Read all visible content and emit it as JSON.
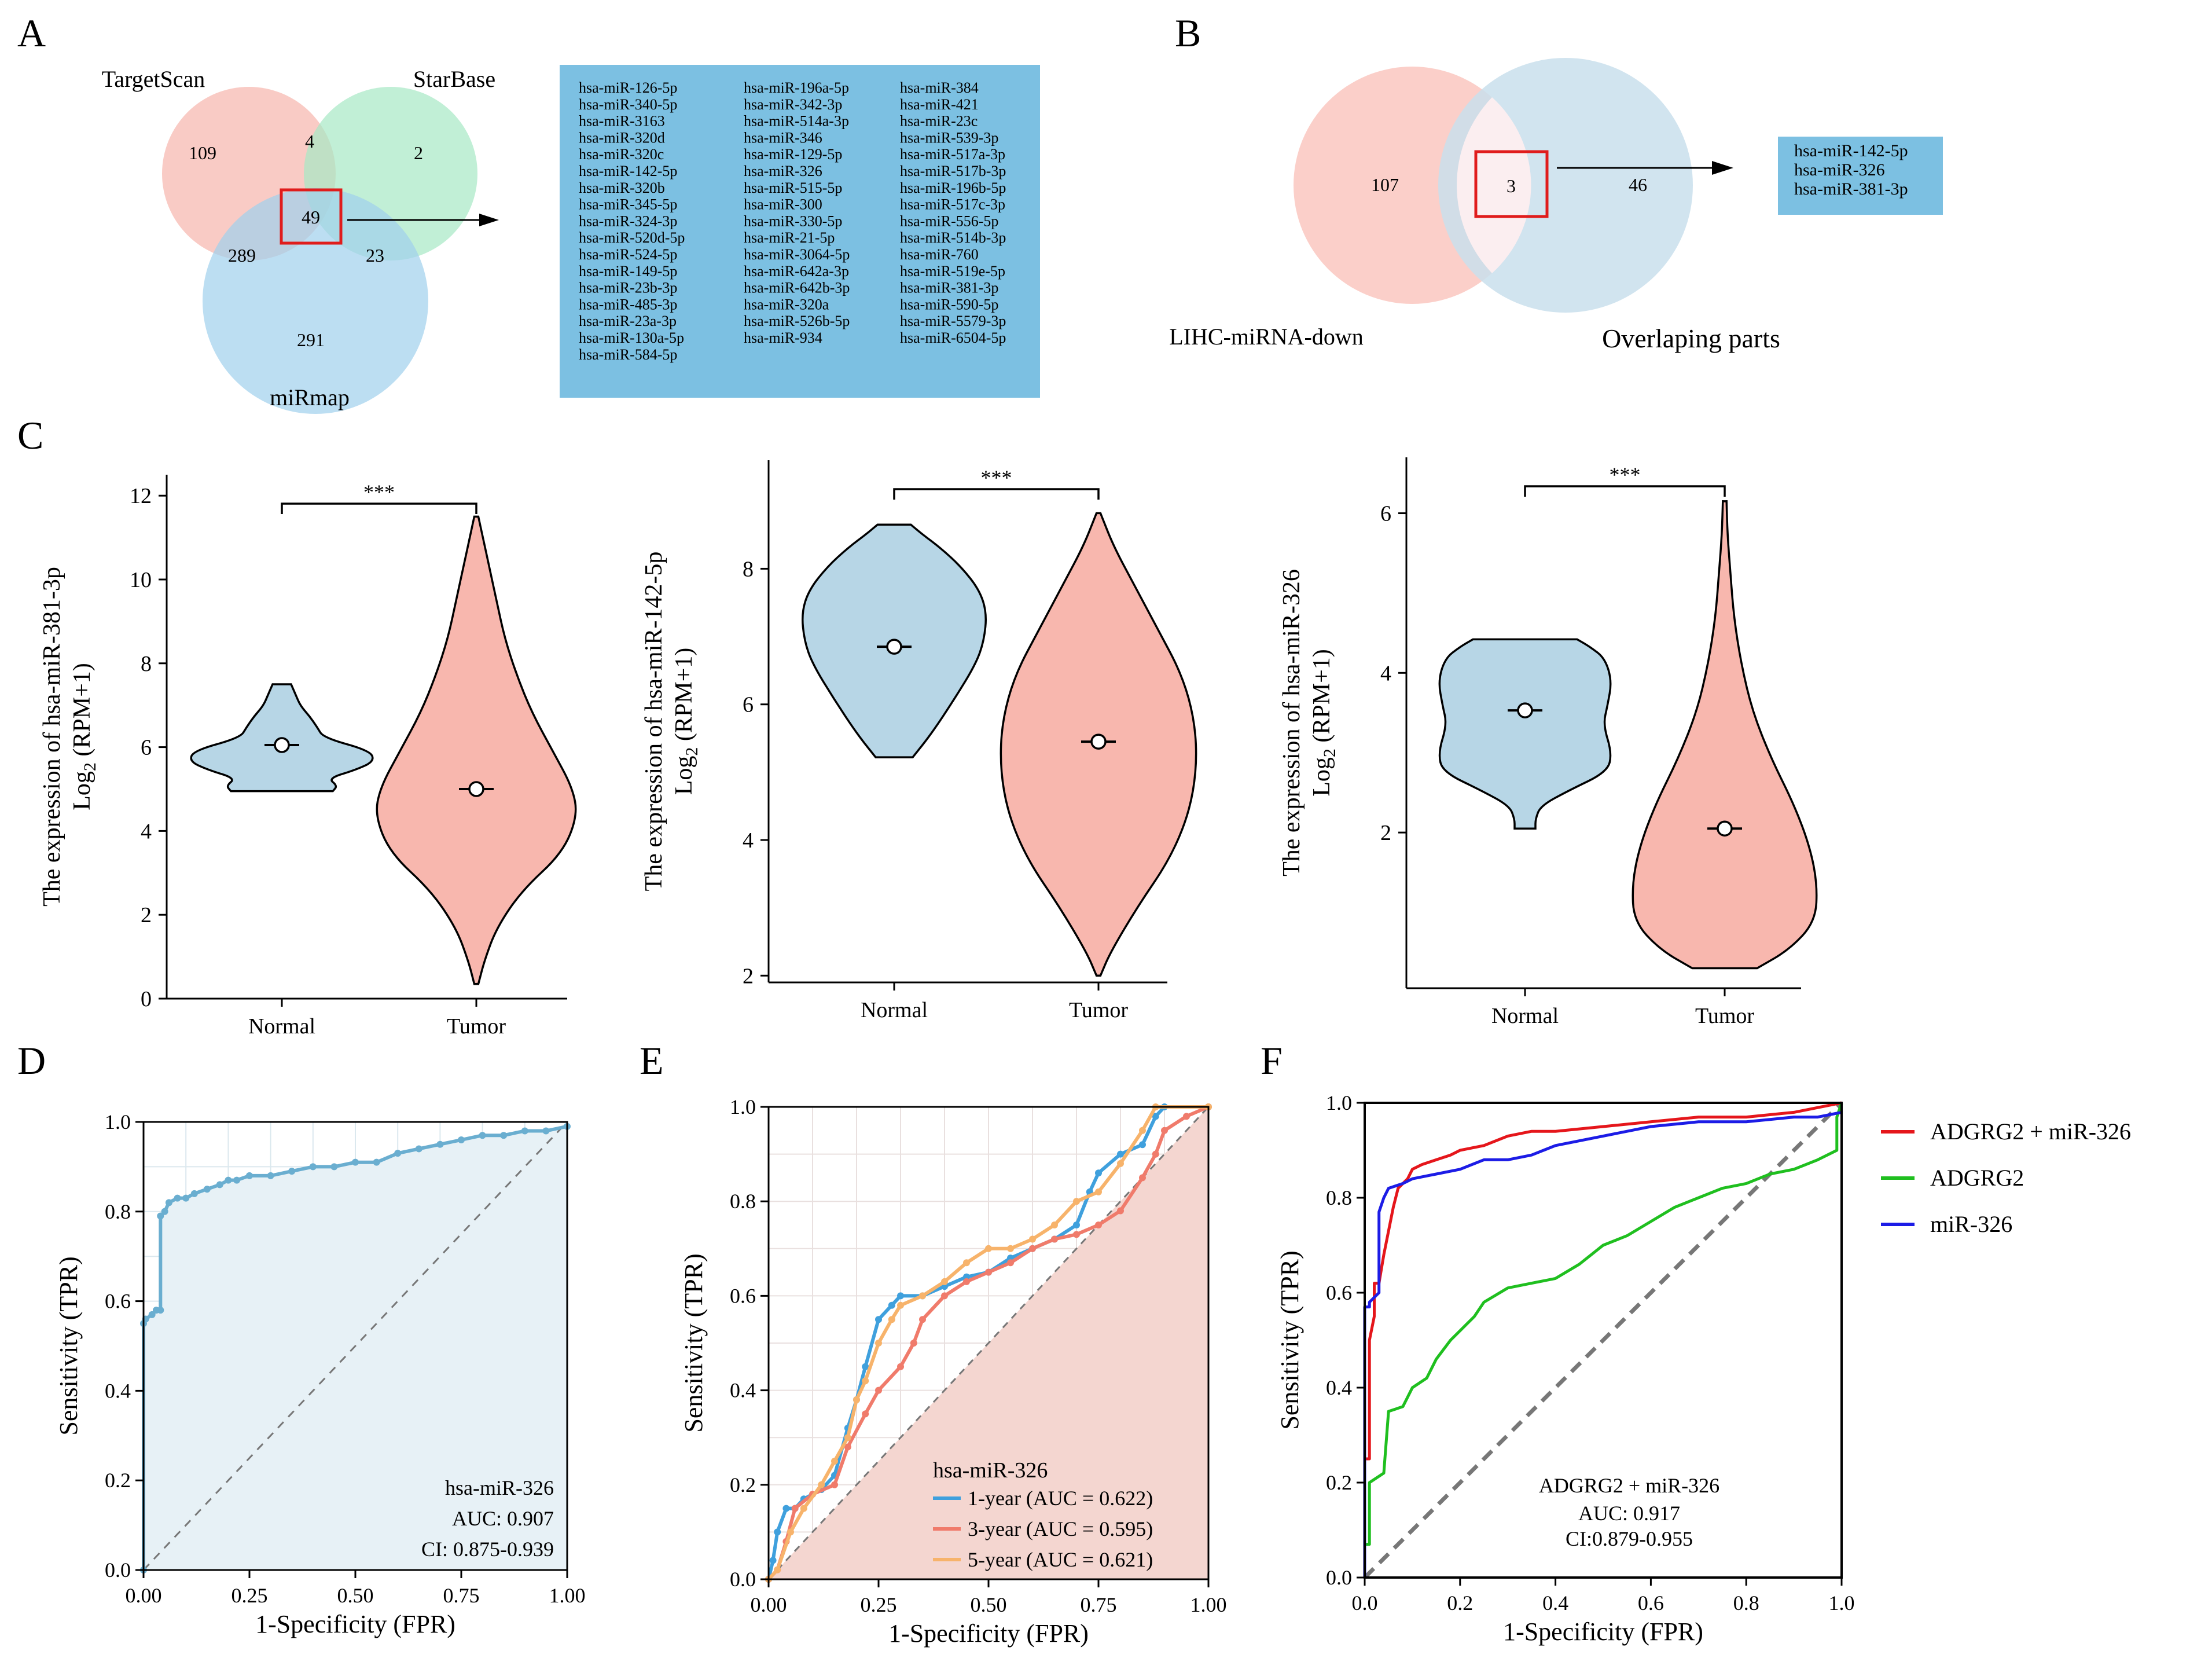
{
  "chart_data": [
    {
      "panel": "A",
      "type": "venn",
      "sets": [
        "TargetScan",
        "StarBase",
        "miRmap"
      ],
      "regions": {
        "TargetScan_only": 109,
        "StarBase_only": 2,
        "miRmap_only": 291,
        "TargetScan_StarBase": 4,
        "TargetScan_miRmap": 289,
        "StarBase_miRmap": 23,
        "all_three": 49
      },
      "intersection_list": [
        [
          "hsa-miR-126-5p",
          "hsa-miR-340-5p",
          "hsa-miR-3163",
          "hsa-miR-320d",
          "hsa-miR-320c",
          "hsa-miR-142-5p",
          "hsa-miR-320b",
          "hsa-miR-345-5p",
          "hsa-miR-324-3p",
          "hsa-miR-520d-5p",
          "hsa-miR-524-5p",
          "hsa-miR-149-5p",
          "hsa-miR-23b-3p",
          "hsa-miR-485-3p",
          "hsa-miR-23a-3p",
          "hsa-miR-130a-5p",
          "hsa-miR-584-5p"
        ],
        [
          "hsa-miR-196a-5p",
          "hsa-miR-342-3p",
          "hsa-miR-514a-3p",
          "hsa-miR-346",
          "hsa-miR-129-5p",
          "hsa-miR-326",
          "hsa-miR-515-5p",
          "hsa-miR-300",
          "hsa-miR-330-5p",
          "hsa-miR-21-5p",
          "hsa-miR-3064-5p",
          "hsa-miR-642a-3p",
          "hsa-miR-642b-3p",
          "hsa-miR-320a",
          "hsa-miR-526b-5p",
          "hsa-miR-934"
        ],
        [
          "hsa-miR-384",
          "hsa-miR-421",
          "hsa-miR-23c",
          "hsa-miR-539-3p",
          "hsa-miR-517a-3p",
          "hsa-miR-517b-3p",
          "hsa-miR-196b-5p",
          "hsa-miR-517c-3p",
          "hsa-miR-556-5p",
          "hsa-miR-514b-3p",
          "hsa-miR-760",
          "hsa-miR-519e-5p",
          "hsa-miR-381-3p",
          "hsa-miR-590-5p",
          "hsa-miR-5579-3p",
          "hsa-miR-6504-5p"
        ]
      ],
      "colors": {
        "TargetScan": "#f6b5ad",
        "StarBase": "#a6e8c5",
        "miRmap": "#9fd0ec",
        "list_box": "#7cc0e2"
      }
    },
    {
      "panel": "B",
      "type": "venn",
      "sets": [
        "LIHC-miRNA-down",
        "Overlaping parts"
      ],
      "regions": {
        "left_only": 107,
        "overlap": 3,
        "right_only": 46
      },
      "intersection_list": [
        "hsa-miR-142-5p",
        "hsa-miR-326",
        "hsa-miR-381-3p"
      ],
      "colors": {
        "left": "#fac7bf",
        "right": "#c9dfec",
        "list_box": "#7cc0e2"
      }
    },
    {
      "panel": "C",
      "type": "violin",
      "significance": "***",
      "categories": [
        "Normal",
        "Tumor"
      ],
      "plots": [
        {
          "ylabel_line1": "The expression  of hsa-miR-381-3p",
          "ylabel_base": "Log",
          "ylabel_sub": "2",
          "ylabel_tail": " (RPM+1)",
          "ylim": [
            0,
            12.5
          ],
          "yticks": [
            0,
            2,
            4,
            6,
            8,
            10,
            12
          ],
          "normal": {
            "min": 4.95,
            "max": 7.5,
            "mean": 6.05
          },
          "tumor": {
            "min": 0.35,
            "max": 11.5,
            "mean": 5.0
          }
        },
        {
          "ylabel_line1": "The expression  of hsa-miR-142-5p",
          "ylabel_base": "Log",
          "ylabel_sub": "2",
          "ylabel_tail": " (RPM+1)",
          "ylim": [
            1.9,
            9.6
          ],
          "yticks": [
            2,
            4,
            6,
            8
          ],
          "normal": {
            "min": 5.22,
            "max": 8.65,
            "mean": 6.85
          },
          "tumor": {
            "min": 2.0,
            "max": 8.82,
            "mean": 5.45
          }
        },
        {
          "ylabel_line1": "The expression  of hsa-miR-326",
          "ylabel_base": "Log",
          "ylabel_sub": "2",
          "ylabel_tail": " (RPM+1)",
          "ylim": [
            0.05,
            6.7
          ],
          "yticks": [
            2,
            4,
            6
          ],
          "normal": {
            "min": 2.05,
            "max": 4.42,
            "mean": 3.53
          },
          "tumor": {
            "min": 0.3,
            "max": 6.15,
            "mean": 2.05
          }
        }
      ],
      "colors": {
        "normal": "#b7d6e6",
        "tumor": "#f8b7ae"
      }
    },
    {
      "panel": "D",
      "type": "line",
      "title": "",
      "xlabel": "1-Specificity (FPR)",
      "ylabel": "Sensitivity (TPR)",
      "xlim": [
        0,
        1
      ],
      "ylim": [
        0,
        1
      ],
      "xticks": [
        "0.00",
        "0.25",
        "0.50",
        "0.75",
        "1.00"
      ],
      "yticks": [
        "0.0",
        "0.2",
        "0.4",
        "0.6",
        "0.8",
        "1.0"
      ],
      "series": [
        {
          "name": "hsa-miR-326",
          "color": "#6aaed0",
          "points": [
            [
              0,
              0
            ],
            [
              0,
              0.55
            ],
            [
              0.005,
              0.56
            ],
            [
              0.02,
              0.57
            ],
            [
              0.03,
              0.58
            ],
            [
              0.04,
              0.58
            ],
            [
              0.04,
              0.79
            ],
            [
              0.05,
              0.8
            ],
            [
              0.06,
              0.82
            ],
            [
              0.08,
              0.83
            ],
            [
              0.1,
              0.83
            ],
            [
              0.12,
              0.84
            ],
            [
              0.15,
              0.85
            ],
            [
              0.18,
              0.86
            ],
            [
              0.2,
              0.87
            ],
            [
              0.22,
              0.87
            ],
            [
              0.25,
              0.88
            ],
            [
              0.3,
              0.88
            ],
            [
              0.35,
              0.89
            ],
            [
              0.4,
              0.9
            ],
            [
              0.45,
              0.9
            ],
            [
              0.5,
              0.91
            ],
            [
              0.55,
              0.91
            ],
            [
              0.6,
              0.93
            ],
            [
              0.65,
              0.94
            ],
            [
              0.7,
              0.95
            ],
            [
              0.75,
              0.96
            ],
            [
              0.8,
              0.97
            ],
            [
              0.85,
              0.97
            ],
            [
              0.9,
              0.98
            ],
            [
              0.95,
              0.98
            ],
            [
              1,
              0.99
            ]
          ]
        }
      ],
      "legend": {
        "name": "hsa-miR-326",
        "auc": "AUC: 0.907",
        "ci": "CI: 0.875-0.939"
      }
    },
    {
      "panel": "E",
      "type": "line",
      "xlabel": "1-Specificity (FPR)",
      "ylabel": "Sensitivity (TPR)",
      "xlim": [
        0,
        1
      ],
      "ylim": [
        0,
        1
      ],
      "xticks": [
        "0.00",
        "0.25",
        "0.50",
        "0.75",
        "1.00"
      ],
      "yticks": [
        "0.0",
        "0.2",
        "0.4",
        "0.6",
        "0.8",
        "1.0"
      ],
      "legend_title": "hsa-miR-326",
      "series": [
        {
          "name": "1-year (AUC = 0.622)",
          "color": "#3fa0dd",
          "points": [
            [
              0,
              0
            ],
            [
              0.01,
              0.04
            ],
            [
              0.02,
              0.1
            ],
            [
              0.04,
              0.15
            ],
            [
              0.06,
              0.15
            ],
            [
              0.08,
              0.17
            ],
            [
              0.12,
              0.19
            ],
            [
              0.15,
              0.22
            ],
            [
              0.18,
              0.32
            ],
            [
              0.2,
              0.38
            ],
            [
              0.22,
              0.45
            ],
            [
              0.25,
              0.55
            ],
            [
              0.28,
              0.58
            ],
            [
              0.3,
              0.6
            ],
            [
              0.35,
              0.6
            ],
            [
              0.4,
              0.62
            ],
            [
              0.45,
              0.64
            ],
            [
              0.5,
              0.65
            ],
            [
              0.55,
              0.68
            ],
            [
              0.6,
              0.7
            ],
            [
              0.65,
              0.72
            ],
            [
              0.7,
              0.75
            ],
            [
              0.73,
              0.82
            ],
            [
              0.75,
              0.86
            ],
            [
              0.8,
              0.9
            ],
            [
              0.85,
              0.92
            ],
            [
              0.88,
              0.98
            ],
            [
              0.9,
              1.0
            ],
            [
              1,
              1
            ]
          ]
        },
        {
          "name": "3-year (AUC = 0.595)",
          "color": "#f07b6b",
          "points": [
            [
              0,
              0
            ],
            [
              0.02,
              0.02
            ],
            [
              0.04,
              0.08
            ],
            [
              0.06,
              0.15
            ],
            [
              0.1,
              0.18
            ],
            [
              0.15,
              0.2
            ],
            [
              0.18,
              0.28
            ],
            [
              0.22,
              0.35
            ],
            [
              0.25,
              0.4
            ],
            [
              0.3,
              0.45
            ],
            [
              0.33,
              0.5
            ],
            [
              0.35,
              0.55
            ],
            [
              0.4,
              0.6
            ],
            [
              0.45,
              0.63
            ],
            [
              0.5,
              0.65
            ],
            [
              0.55,
              0.67
            ],
            [
              0.6,
              0.7
            ],
            [
              0.65,
              0.72
            ],
            [
              0.7,
              0.73
            ],
            [
              0.75,
              0.75
            ],
            [
              0.8,
              0.78
            ],
            [
              0.85,
              0.85
            ],
            [
              0.88,
              0.9
            ],
            [
              0.9,
              0.95
            ],
            [
              0.95,
              0.98
            ],
            [
              1,
              1
            ]
          ]
        },
        {
          "name": "5-year (AUC = 0.621)",
          "color": "#f7b36b",
          "points": [
            [
              0,
              0
            ],
            [
              0.02,
              0.02
            ],
            [
              0.05,
              0.1
            ],
            [
              0.08,
              0.15
            ],
            [
              0.12,
              0.2
            ],
            [
              0.15,
              0.25
            ],
            [
              0.18,
              0.3
            ],
            [
              0.2,
              0.38
            ],
            [
              0.22,
              0.42
            ],
            [
              0.25,
              0.5
            ],
            [
              0.28,
              0.55
            ],
            [
              0.3,
              0.58
            ],
            [
              0.35,
              0.6
            ],
            [
              0.4,
              0.63
            ],
            [
              0.45,
              0.67
            ],
            [
              0.5,
              0.7
            ],
            [
              0.55,
              0.7
            ],
            [
              0.6,
              0.72
            ],
            [
              0.65,
              0.75
            ],
            [
              0.7,
              0.8
            ],
            [
              0.75,
              0.82
            ],
            [
              0.8,
              0.88
            ],
            [
              0.85,
              0.95
            ],
            [
              0.88,
              1.0
            ],
            [
              1,
              1
            ]
          ]
        }
      ],
      "fill_color": "#f4d6d0"
    },
    {
      "panel": "F",
      "type": "line",
      "xlabel": "1-Specificity (FPR)",
      "ylabel": "Sensitivity (TPR)",
      "xlim": [
        0,
        1
      ],
      "ylim": [
        0,
        1
      ],
      "xticks": [
        "0.0",
        "0.2",
        "0.4",
        "0.6",
        "0.8",
        "1.0"
      ],
      "yticks": [
        "0.0",
        "0.2",
        "0.4",
        "0.6",
        "0.8",
        "1.0"
      ],
      "series": [
        {
          "name": "ADGRG2 + miR-326",
          "color": "#e5161b",
          "points": [
            [
              0,
              0
            ],
            [
              0,
              0.25
            ],
            [
              0.01,
              0.25
            ],
            [
              0.01,
              0.5
            ],
            [
              0.02,
              0.55
            ],
            [
              0.02,
              0.62
            ],
            [
              0.03,
              0.62
            ],
            [
              0.04,
              0.68
            ],
            [
              0.05,
              0.73
            ],
            [
              0.06,
              0.78
            ],
            [
              0.07,
              0.82
            ],
            [
              0.09,
              0.84
            ],
            [
              0.1,
              0.86
            ],
            [
              0.12,
              0.87
            ],
            [
              0.15,
              0.88
            ],
            [
              0.18,
              0.89
            ],
            [
              0.2,
              0.9
            ],
            [
              0.25,
              0.91
            ],
            [
              0.3,
              0.93
            ],
            [
              0.35,
              0.94
            ],
            [
              0.4,
              0.94
            ],
            [
              0.5,
              0.95
            ],
            [
              0.6,
              0.96
            ],
            [
              0.7,
              0.97
            ],
            [
              0.8,
              0.97
            ],
            [
              0.9,
              0.98
            ],
            [
              1,
              1
            ]
          ]
        },
        {
          "name": "ADGRG2",
          "color": "#1fbf1f",
          "points": [
            [
              0,
              0
            ],
            [
              0,
              0.07
            ],
            [
              0.01,
              0.07
            ],
            [
              0.01,
              0.2
            ],
            [
              0.04,
              0.22
            ],
            [
              0.05,
              0.35
            ],
            [
              0.08,
              0.36
            ],
            [
              0.1,
              0.4
            ],
            [
              0.13,
              0.42
            ],
            [
              0.15,
              0.46
            ],
            [
              0.18,
              0.5
            ],
            [
              0.2,
              0.52
            ],
            [
              0.23,
              0.55
            ],
            [
              0.25,
              0.58
            ],
            [
              0.3,
              0.61
            ],
            [
              0.35,
              0.62
            ],
            [
              0.4,
              0.63
            ],
            [
              0.45,
              0.66
            ],
            [
              0.5,
              0.7
            ],
            [
              0.55,
              0.72
            ],
            [
              0.6,
              0.75
            ],
            [
              0.65,
              0.78
            ],
            [
              0.7,
              0.8
            ],
            [
              0.75,
              0.82
            ],
            [
              0.8,
              0.83
            ],
            [
              0.85,
              0.85
            ],
            [
              0.9,
              0.86
            ],
            [
              0.95,
              0.88
            ],
            [
              0.99,
              0.9
            ],
            [
              0.99,
              0.97
            ],
            [
              1,
              1
            ]
          ]
        },
        {
          "name": "miR-326",
          "color": "#1c1ce6",
          "points": [
            [
              0,
              0
            ],
            [
              0,
              0.57
            ],
            [
              0.01,
              0.57
            ],
            [
              0.01,
              0.58
            ],
            [
              0.03,
              0.6
            ],
            [
              0.03,
              0.77
            ],
            [
              0.04,
              0.8
            ],
            [
              0.05,
              0.82
            ],
            [
              0.08,
              0.83
            ],
            [
              0.1,
              0.84
            ],
            [
              0.15,
              0.85
            ],
            [
              0.2,
              0.86
            ],
            [
              0.25,
              0.88
            ],
            [
              0.3,
              0.88
            ],
            [
              0.35,
              0.89
            ],
            [
              0.4,
              0.91
            ],
            [
              0.5,
              0.93
            ],
            [
              0.6,
              0.95
            ],
            [
              0.7,
              0.96
            ],
            [
              0.8,
              0.96
            ],
            [
              0.9,
              0.97
            ],
            [
              0.95,
              0.97
            ],
            [
              1,
              0.98
            ]
          ]
        }
      ],
      "annotation": {
        "name": "ADGRG2 + miR-326",
        "auc": "AUC: 0.917",
        "ci": "CI:0.879-0.955"
      }
    }
  ]
}
